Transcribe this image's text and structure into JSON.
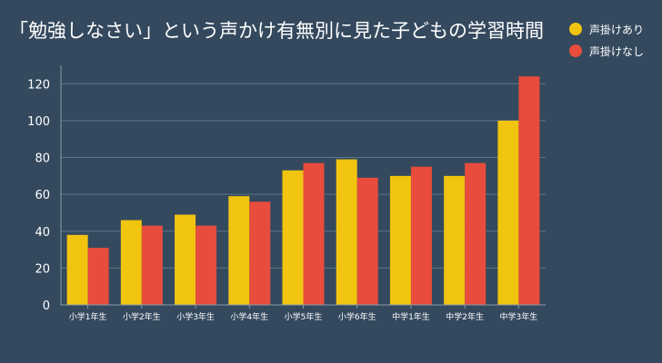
{
  "chart_data": {
    "type": "bar",
    "title": "「勉強しなさい」という声かけ有無別に見た子どもの学習時間",
    "categories": [
      "小学1年生",
      "小学2年生",
      "小学3年生",
      "小学4年生",
      "小学5年生",
      "小学6年生",
      "中学1年生",
      "中学2年生",
      "中学3年生"
    ],
    "series": [
      {
        "name": "声掛けあり",
        "color": "#f1c40f",
        "values": [
          38,
          46,
          49,
          59,
          73,
          79,
          70,
          70,
          100
        ]
      },
      {
        "name": "声掛けなし",
        "color": "#e74c3c",
        "values": [
          31,
          43,
          43,
          56,
          77,
          69,
          75,
          77,
          124
        ]
      }
    ],
    "yticks": [
      "0",
      "20",
      "40",
      "60",
      "80",
      "100",
      "120"
    ],
    "ylim": [
      0,
      130
    ],
    "xlabel": "",
    "ylabel": "",
    "grid": true,
    "legend_position": "top-right"
  }
}
